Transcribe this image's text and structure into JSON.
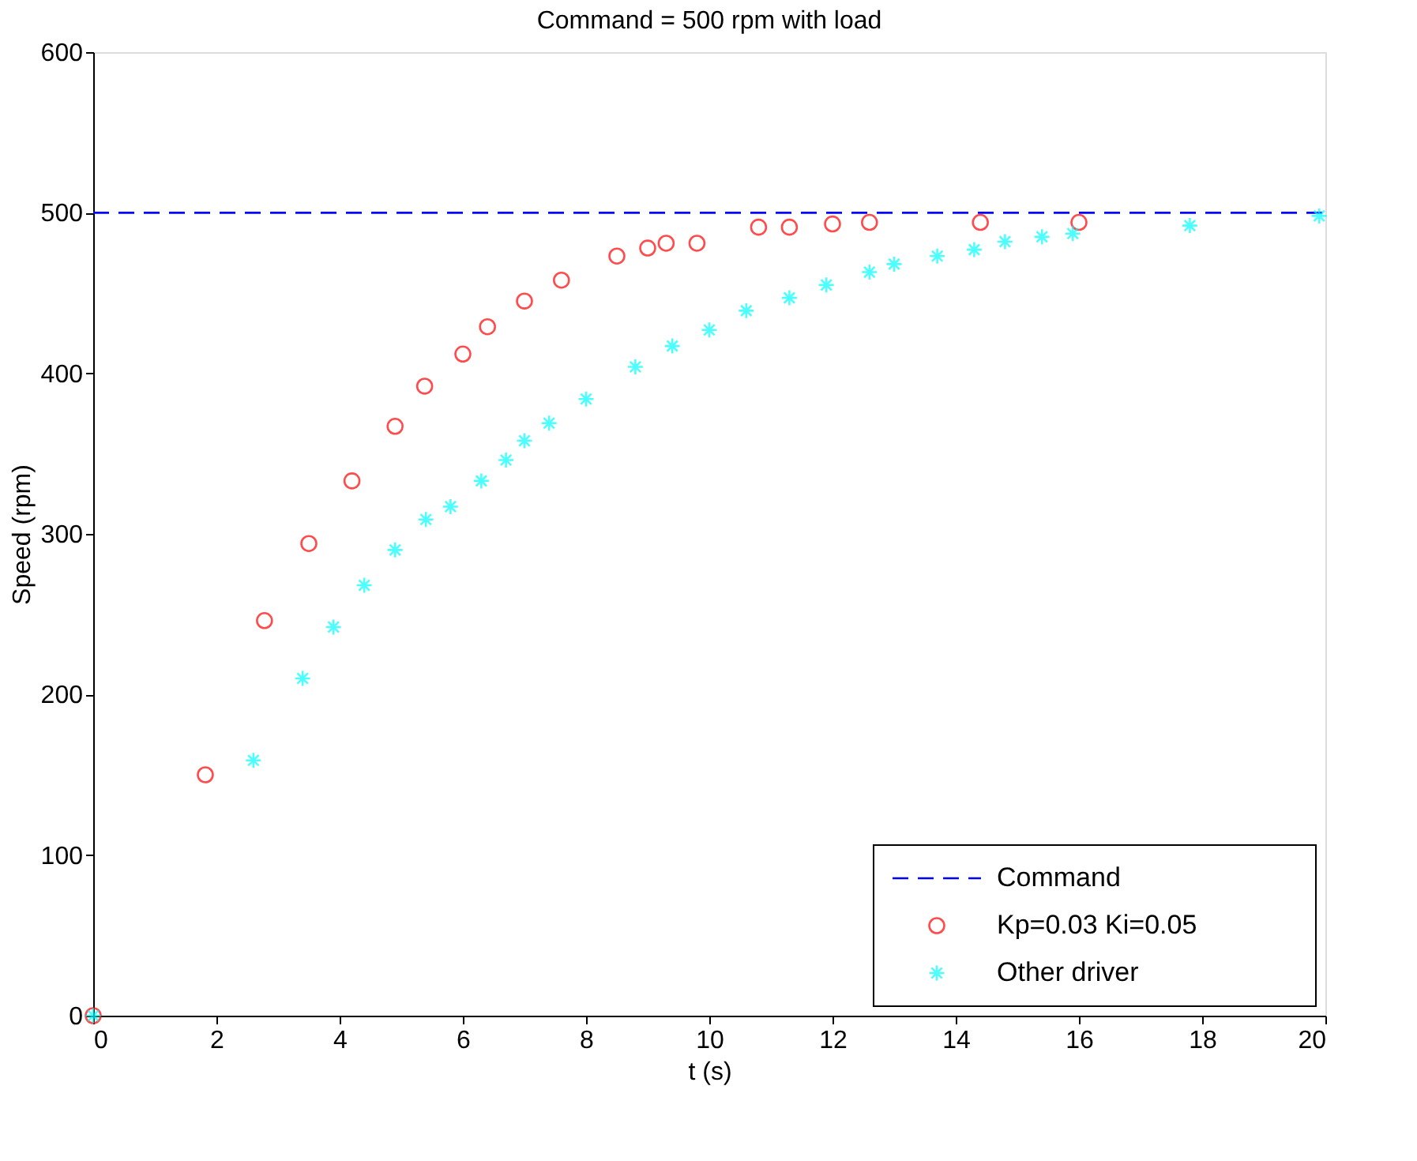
{
  "chart_data": {
    "type": "scatter",
    "title": "Command = 500 rpm with load",
    "xlabel": "t (s)",
    "ylabel": "Speed (rpm)",
    "xlim": [
      0,
      20
    ],
    "xticks": [
      0,
      2,
      4,
      6,
      8,
      10,
      12,
      14,
      16,
      18,
      20
    ],
    "ylim": [
      0,
      600
    ],
    "yticks": [
      0,
      100,
      200,
      300,
      400,
      500,
      600
    ],
    "grid": false,
    "legend": "bottom right",
    "series": [
      {
        "name": "Command",
        "type": "line",
        "color": "#0000ff",
        "line_style": "dashed",
        "marker": "none",
        "x": [
          0,
          20
        ],
        "values": [
          500,
          500
        ]
      },
      {
        "name": "Kp=0.03 Ki=0.05",
        "color": "#ff0000",
        "marker": "circle",
        "x": [
          0,
          1.82,
          2.78,
          3.5,
          4.2,
          4.9,
          5.38,
          6.0,
          6.4,
          7.0,
          7.6,
          8.5,
          9.0,
          9.3,
          9.8,
          10.8,
          11.3,
          12.0,
          12.6,
          14.4,
          16.0
        ],
        "values": [
          0,
          150,
          246,
          294,
          333,
          367,
          392,
          412,
          429,
          445,
          458,
          473,
          478,
          481,
          481,
          491,
          491,
          493,
          494,
          494,
          494
        ]
      },
      {
        "name": "Other driver",
        "color": "#00ffff",
        "marker": "cross",
        "x": [
          0,
          2.6,
          3.4,
          3.9,
          4.4,
          4.9,
          5.4,
          5.8,
          6.3,
          6.7,
          7.0,
          7.4,
          8.0,
          8.8,
          9.4,
          10.0,
          10.6,
          11.3,
          11.9,
          12.6,
          13.0,
          13.7,
          14.3,
          14.8,
          15.4,
          15.9,
          17.8,
          19.9
        ],
        "values": [
          0,
          159,
          210,
          242,
          268,
          290,
          309,
          317,
          333,
          346,
          358,
          369,
          384,
          404,
          417,
          427,
          439,
          447,
          455,
          463,
          468,
          473,
          477,
          482,
          485,
          487,
          492,
          498
        ]
      }
    ]
  }
}
